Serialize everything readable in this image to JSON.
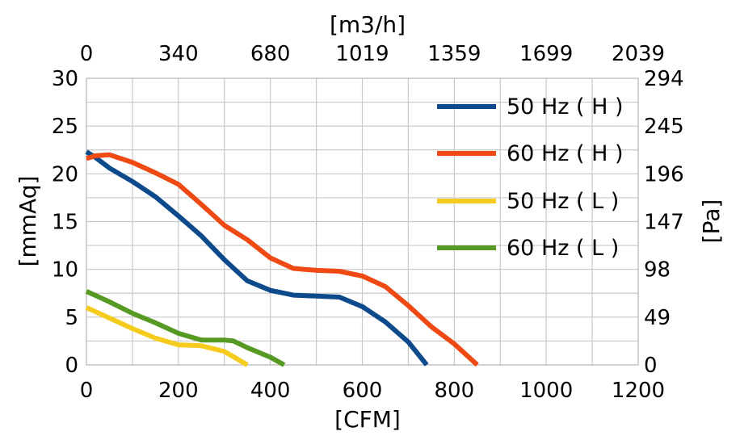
{
  "chart_data": {
    "type": "line",
    "x_bottom": {
      "label": "[CFM]",
      "range": [
        0,
        1200
      ],
      "ticks": [
        "0",
        "200",
        "400",
        "600",
        "800",
        "1000",
        "1200"
      ]
    },
    "x_top": {
      "label": "[m3/h]",
      "ticks": [
        "0",
        "340",
        "680",
        "1019",
        "1359",
        "1699",
        "2039"
      ]
    },
    "y_left": {
      "label": "[mmAq]",
      "range": [
        0,
        30
      ],
      "ticks": [
        "0",
        "5",
        "10",
        "15",
        "20",
        "25",
        "30"
      ]
    },
    "y_right": {
      "label": "[Pa]",
      "ticks": [
        "0",
        "49",
        "98",
        "147",
        "196",
        "245",
        "294"
      ]
    },
    "grid": true,
    "legend_position": "top-right",
    "series": [
      {
        "name": "50 Hz ( H )",
        "color": "#0d4a8c",
        "points": [
          [
            0,
            22.3
          ],
          [
            20,
            21.7
          ],
          [
            50,
            20.6
          ],
          [
            100,
            19.2
          ],
          [
            150,
            17.6
          ],
          [
            200,
            15.6
          ],
          [
            250,
            13.5
          ],
          [
            300,
            11.0
          ],
          [
            350,
            8.8
          ],
          [
            400,
            7.8
          ],
          [
            450,
            7.3
          ],
          [
            500,
            7.2
          ],
          [
            550,
            7.1
          ],
          [
            600,
            6.1
          ],
          [
            650,
            4.5
          ],
          [
            700,
            2.4
          ],
          [
            740,
            0
          ]
        ]
      },
      {
        "name": "60 Hz ( H )",
        "color": "#f04a14",
        "points": [
          [
            0,
            21.6
          ],
          [
            20,
            21.9
          ],
          [
            50,
            22.0
          ],
          [
            100,
            21.2
          ],
          [
            150,
            20.1
          ],
          [
            200,
            18.9
          ],
          [
            250,
            16.8
          ],
          [
            300,
            14.6
          ],
          [
            350,
            13.1
          ],
          [
            400,
            11.2
          ],
          [
            450,
            10.1
          ],
          [
            500,
            9.9
          ],
          [
            550,
            9.8
          ],
          [
            600,
            9.3
          ],
          [
            650,
            8.2
          ],
          [
            700,
            6.2
          ],
          [
            750,
            4.0
          ],
          [
            800,
            2.2
          ],
          [
            850,
            0
          ]
        ]
      },
      {
        "name": "50 Hz ( L )",
        "color": "#f5cc1e",
        "points": [
          [
            0,
            6.0
          ],
          [
            50,
            4.9
          ],
          [
            100,
            3.8
          ],
          [
            150,
            2.8
          ],
          [
            200,
            2.1
          ],
          [
            250,
            2.0
          ],
          [
            300,
            1.4
          ],
          [
            350,
            0
          ]
        ]
      },
      {
        "name": "60 Hz ( L )",
        "color": "#569a24",
        "points": [
          [
            0,
            7.7
          ],
          [
            50,
            6.6
          ],
          [
            100,
            5.4
          ],
          [
            150,
            4.4
          ],
          [
            200,
            3.3
          ],
          [
            250,
            2.6
          ],
          [
            300,
            2.6
          ],
          [
            320,
            2.5
          ],
          [
            350,
            1.8
          ],
          [
            400,
            0.8
          ],
          [
            430,
            0
          ]
        ]
      }
    ]
  }
}
